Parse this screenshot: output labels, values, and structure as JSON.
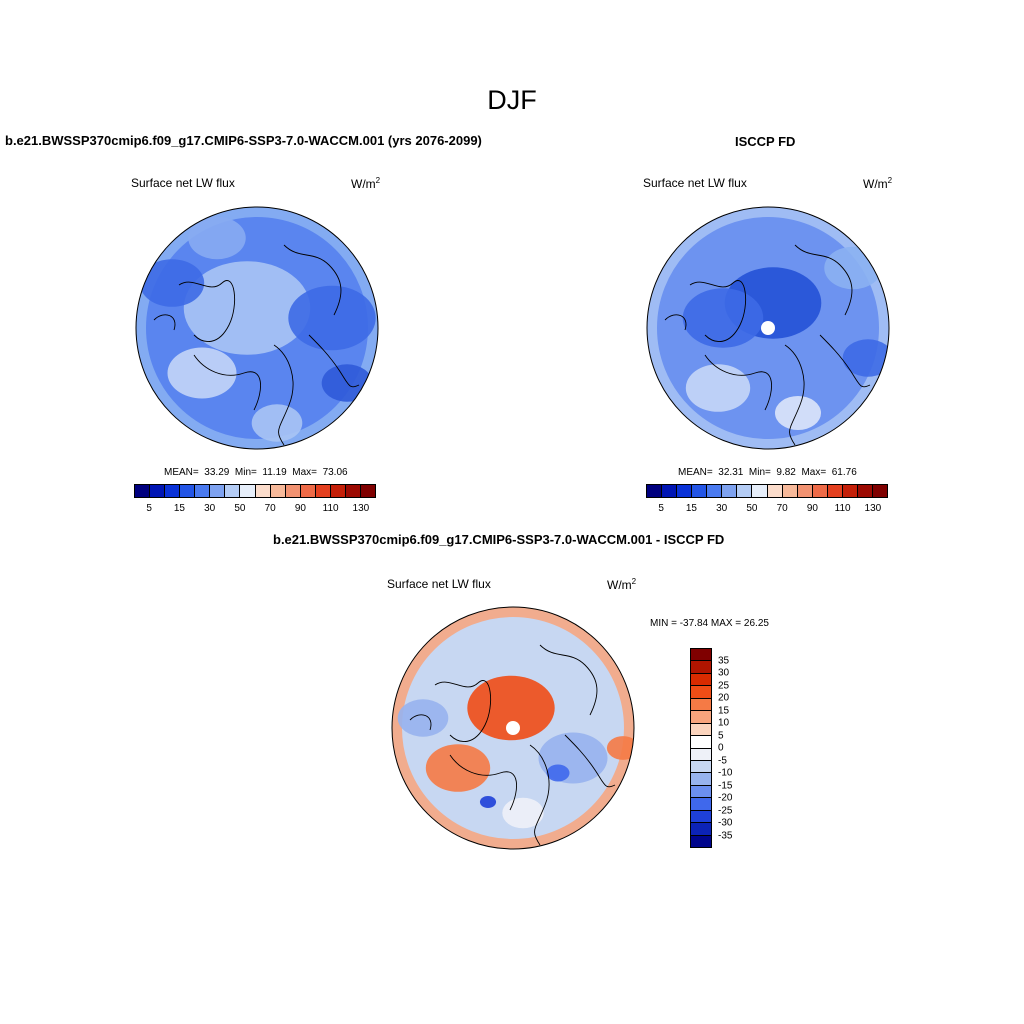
{
  "page": {
    "title": "DJF"
  },
  "panels": {
    "model": {
      "title": "b.e21.BWSSP370cmip6.f09_g17.CMIP6-SSP3-7.0-WACCM.001 (yrs 2076-2099)",
      "variable": "Surface net LW flux",
      "units": "W/m",
      "units_exp": "2",
      "stats": {
        "mean_label": "MEAN=",
        "mean": "33.29",
        "min_label": "Min=",
        "min": "11.19",
        "max_label": "Max=",
        "max": "73.06"
      }
    },
    "obs": {
      "title": "ISCCP FD",
      "variable": "Surface net LW flux",
      "units": "W/m",
      "units_exp": "2",
      "stats": {
        "mean_label": "MEAN=",
        "mean": "32.31",
        "min_label": "Min=",
        "min": "9.82",
        "max_label": "Max=",
        "max": "61.76"
      }
    },
    "diff": {
      "title": "b.e21.BWSSP370cmip6.f09_g17.CMIP6-SSP3-7.0-WACCM.001 - ISCCP FD",
      "variable": "Surface net LW flux",
      "units": "W/m",
      "units_exp": "2",
      "minmax": "MIN = -37.84 MAX =  26.25"
    }
  },
  "colorbars": {
    "abs": {
      "colors": [
        "#00007f",
        "#0015b4",
        "#0a32d8",
        "#2355e6",
        "#4a7af0",
        "#7ea2f0",
        "#b4ccf5",
        "#e6eefa",
        "#fbdccb",
        "#f7b99a",
        "#f29271",
        "#ee6a47",
        "#e4401f",
        "#c41f08",
        "#9c0a02",
        "#7f0000"
      ],
      "tick_labels": [
        "5",
        "15",
        "30",
        "50",
        "70",
        "90",
        "110",
        "130"
      ]
    },
    "diff": {
      "colors": [
        "#7f0000",
        "#b01500",
        "#d82b00",
        "#ef4d16",
        "#f57a45",
        "#f8a47c",
        "#fbd4bd",
        "#eef1f8",
        "#c7d7f2",
        "#97b3ee",
        "#6b8ff0",
        "#3f68ec",
        "#1e40d8",
        "#0c23b6",
        "#00058c"
      ],
      "labels": [
        "35",
        "30",
        "25",
        "20",
        "15",
        "10",
        "5",
        "0",
        "-5",
        "-10",
        "-15",
        "-20",
        "-25",
        "-30",
        "-35"
      ]
    }
  },
  "map_fields": {
    "model": {
      "base": "#5a85ef",
      "features": [
        {
          "kind": "ring",
          "color": "#8bb1f2",
          "x": 0,
          "y": 0,
          "r": 120
        },
        {
          "kind": "blob",
          "color": "#a9c4f4",
          "x": -10,
          "y": -20,
          "r": 55
        },
        {
          "kind": "blob",
          "color": "#c3d5f7",
          "x": -55,
          "y": 45,
          "r": 30
        },
        {
          "kind": "blob",
          "color": "#3d6ae6",
          "x": 75,
          "y": -10,
          "r": 38
        },
        {
          "kind": "blob",
          "color": "#3d6ae6",
          "x": -85,
          "y": -45,
          "r": 28
        },
        {
          "kind": "blob",
          "color": "#87abf2",
          "x": -40,
          "y": -90,
          "r": 25
        },
        {
          "kind": "blob",
          "color": "#2f5ad8",
          "x": 90,
          "y": 55,
          "r": 22
        },
        {
          "kind": "blob",
          "color": "#a9c4f4",
          "x": 20,
          "y": 95,
          "r": 22
        }
      ]
    },
    "obs": {
      "base": "#6d93f0",
      "features": [
        {
          "kind": "ring",
          "color": "#a8c3f4",
          "x": 0,
          "y": 0,
          "r": 120
        },
        {
          "kind": "blob",
          "color": "#2452d6",
          "x": 5,
          "y": -25,
          "r": 42
        },
        {
          "kind": "blob",
          "color": "#3d6ae6",
          "x": -45,
          "y": -10,
          "r": 35
        },
        {
          "kind": "blob",
          "color": "#c5d7f7",
          "x": -50,
          "y": 60,
          "r": 28
        },
        {
          "kind": "blob",
          "color": "#dce6fa",
          "x": 30,
          "y": 85,
          "r": 20
        },
        {
          "kind": "blob",
          "color": "#3d6ae6",
          "x": 100,
          "y": 30,
          "r": 22
        },
        {
          "kind": "blob",
          "color": "#8bb1f2",
          "x": 85,
          "y": -60,
          "r": 25
        }
      ]
    },
    "diff": {
      "base": "#c7d7f2",
      "features": [
        {
          "kind": "ring",
          "color": "#f8a47c",
          "x": 0,
          "y": 0,
          "r": 120
        },
        {
          "kind": "blob",
          "color": "#ef4d16",
          "x": -2,
          "y": -20,
          "r": 38
        },
        {
          "kind": "blob",
          "color": "#f57a45",
          "x": -55,
          "y": 40,
          "r": 28
        },
        {
          "kind": "blob",
          "color": "#97b3ee",
          "x": 60,
          "y": 30,
          "r": 30
        },
        {
          "kind": "blob",
          "color": "#3f68ec",
          "x": 45,
          "y": 45,
          "r": 10
        },
        {
          "kind": "blob",
          "color": "#1e40d8",
          "x": -25,
          "y": 74,
          "r": 7
        },
        {
          "kind": "blob",
          "color": "#eef1f8",
          "x": 10,
          "y": 85,
          "r": 18
        },
        {
          "kind": "blob",
          "color": "#97b3ee",
          "x": -90,
          "y": -10,
          "r": 22
        },
        {
          "kind": "blob",
          "color": "#f57a45",
          "x": 110,
          "y": 20,
          "r": 14
        }
      ]
    }
  }
}
